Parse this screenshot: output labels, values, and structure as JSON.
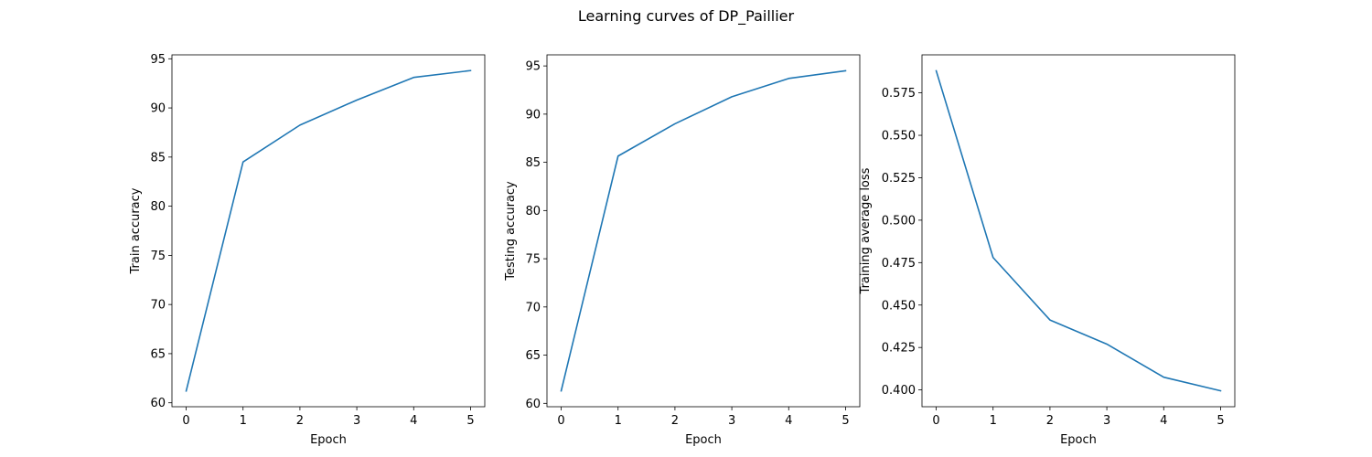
{
  "suptitle": "Learning curves of DP_Paillier",
  "line_color": "#1f77b4",
  "chart_data": [
    {
      "type": "line",
      "xlabel": "Epoch",
      "ylabel": "Train accuracy",
      "x": [
        0,
        1,
        2,
        3,
        4,
        5
      ],
      "values": [
        61.2,
        84.5,
        88.25,
        90.8,
        93.1,
        93.8
      ],
      "xlim": [
        -0.25,
        5.25
      ],
      "ylim": [
        59.6,
        95.4
      ],
      "xticks": [
        0,
        1,
        2,
        3,
        4,
        5
      ],
      "yticks": [
        60,
        65,
        70,
        75,
        80,
        85,
        90,
        95
      ],
      "ytick_labels": [
        "60",
        "65",
        "70",
        "75",
        "80",
        "85",
        "90",
        "95"
      ]
    },
    {
      "type": "line",
      "xlabel": "Epoch",
      "ylabel": "Testing accuracy",
      "x": [
        0,
        1,
        2,
        3,
        4,
        5
      ],
      "values": [
        61.3,
        85.65,
        89.0,
        91.8,
        93.7,
        94.5
      ],
      "xlim": [
        -0.25,
        5.25
      ],
      "ylim": [
        59.65,
        96.15
      ],
      "xticks": [
        0,
        1,
        2,
        3,
        4,
        5
      ],
      "yticks": [
        60,
        65,
        70,
        75,
        80,
        85,
        90,
        95
      ],
      "ytick_labels": [
        "60",
        "65",
        "70",
        "75",
        "80",
        "85",
        "90",
        "95"
      ]
    },
    {
      "type": "line",
      "xlabel": "Epoch",
      "ylabel": "Training average loss",
      "x": [
        0,
        1,
        2,
        3,
        4,
        5
      ],
      "values": [
        0.588,
        0.478,
        0.4412,
        0.427,
        0.4075,
        0.3995
      ],
      "xlim": [
        -0.25,
        5.25
      ],
      "ylim": [
        0.3901,
        0.5974
      ],
      "xticks": [
        0,
        1,
        2,
        3,
        4,
        5
      ],
      "yticks": [
        0.4,
        0.425,
        0.45,
        0.475,
        0.5,
        0.525,
        0.55,
        0.575
      ],
      "ytick_labels": [
        "0.400",
        "0.425",
        "0.450",
        "0.475",
        "0.500",
        "0.525",
        "0.550",
        "0.575"
      ]
    }
  ]
}
